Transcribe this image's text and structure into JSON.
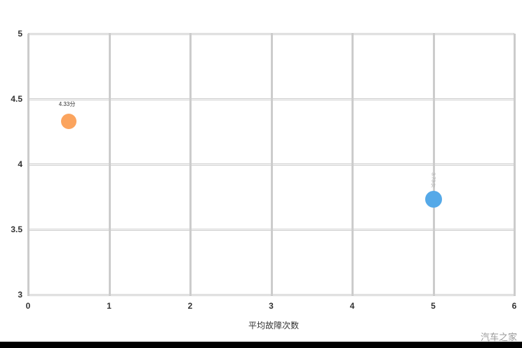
{
  "chart_data": {
    "type": "scatter",
    "title": "",
    "xlabel": "平均故障次数",
    "ylabel": "",
    "xlim": [
      0,
      6
    ],
    "ylim": [
      3,
      5
    ],
    "x_tick_values": [
      0,
      1,
      2,
      3,
      4,
      5,
      6
    ],
    "x_tick_labels": [
      "0",
      "1",
      "2",
      "3",
      "4",
      "5",
      "6"
    ],
    "y_tick_values": [
      5,
      4.5,
      4,
      3.5,
      3
    ],
    "y_tick_labels": [
      "5",
      "4.5",
      "4",
      "3.5",
      "3"
    ],
    "grid": true,
    "grid_color": "#cccccc",
    "legend": "none",
    "series": [
      {
        "name": "orange-point",
        "x": 0.5,
        "y": 4.33,
        "radius": 11,
        "color": "#fba45e",
        "label": "4.33分",
        "label_color": "#333333",
        "label_orientation": "horizontal"
      },
      {
        "name": "blue-point",
        "x": 5.0,
        "y": 3.73,
        "radius": 12,
        "color": "#55a9e8",
        "label": "3.73分",
        "label_color": "#aaaaaa",
        "label_orientation": "vertical"
      }
    ]
  },
  "watermark": "汽车之家",
  "colors": {
    "background": "#ffffff",
    "grid": "#cccccc",
    "tick_text": "#333333",
    "watermark_text": "#999999",
    "bottom_bar": "#000000",
    "point_orange": "#fba45e",
    "point_blue": "#55a9e8"
  }
}
